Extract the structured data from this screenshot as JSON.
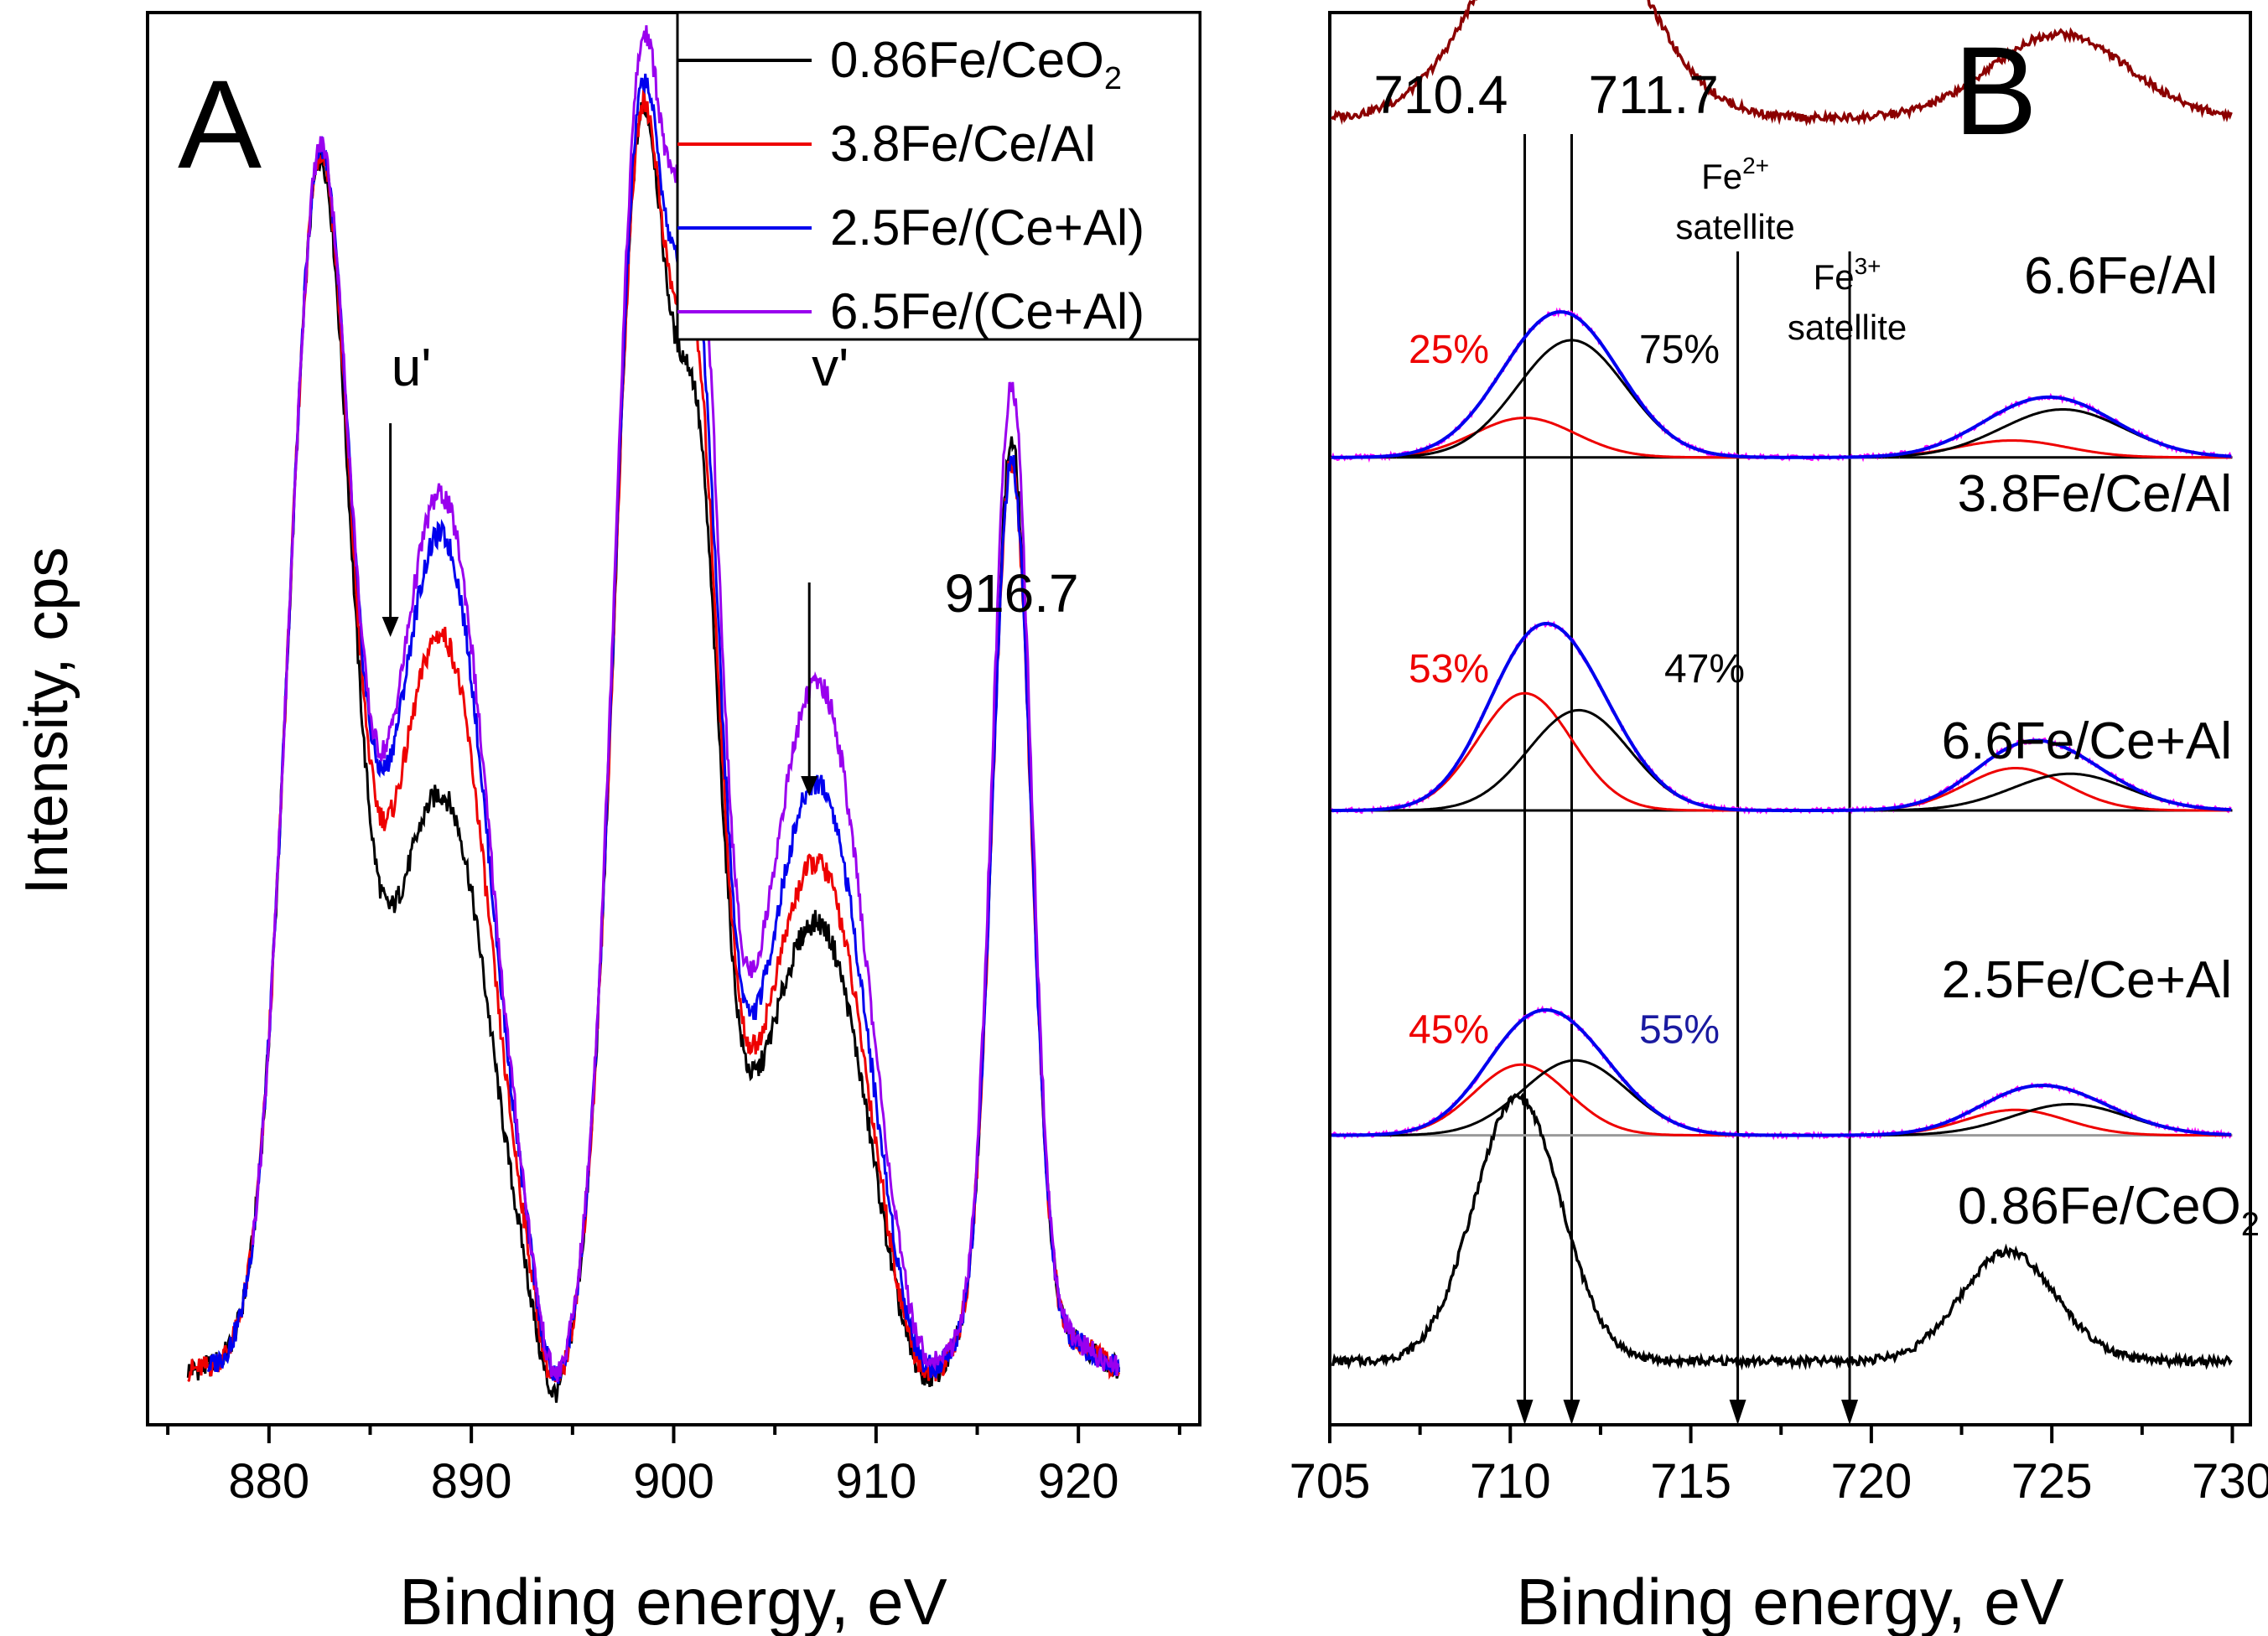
{
  "figure_caption": "",
  "chart_data": [
    {
      "type": "line",
      "panel_label": "A",
      "xlabel": "Binding energy, eV",
      "ylabel": "Intensity, cps",
      "xlim": [
        874,
        926
      ],
      "xticks": [
        "880",
        "890",
        "900",
        "910",
        "920"
      ],
      "yticks_shown": false,
      "ylim": [
        0,
        1.0
      ],
      "legend_position": "top-right",
      "legend": [
        {
          "text": "0.86Fe/CeO",
          "sub": "2",
          "color": "#000000"
        },
        {
          "text": "3.8Fe/Ce/Al",
          "sub": "",
          "color": "#ee0000"
        },
        {
          "text": "2.5Fe/(Ce+Al)",
          "sub": "",
          "color": "#0000ee"
        },
        {
          "text": "6.5Fe/(Ce+Al)",
          "sub": "",
          "color": "#9900ee"
        }
      ],
      "series": [
        {
          "name": "0.86Fe/CeO2",
          "color": "#000000",
          "x_range": [
            876,
            922
          ],
          "peaks": [
            {
              "center": 882.5,
              "height": 0.53,
              "width": 1.5
            },
            {
              "center": 888.5,
              "height": 0.22,
              "width": 2.4
            },
            {
              "center": 898.4,
              "height": 0.55,
              "width": 1.3
            },
            {
              "center": 901.2,
              "height": 0.35,
              "width": 1.1
            },
            {
              "center": 907.2,
              "height": 0.16,
              "width": 2.4
            },
            {
              "center": 916.7,
              "height": 0.45,
              "width": 0.95
            }
          ]
        },
        {
          "name": "3.8Fe/Ce/Al",
          "color": "#ee0000",
          "x_range": [
            876,
            922
          ],
          "peaks": [
            {
              "center": 882.5,
              "height": 0.53,
              "width": 1.5
            },
            {
              "center": 888.5,
              "height": 0.3,
              "width": 2.4
            },
            {
              "center": 898.4,
              "height": 0.55,
              "width": 1.3
            },
            {
              "center": 901.2,
              "height": 0.38,
              "width": 1.1
            },
            {
              "center": 907.2,
              "height": 0.19,
              "width": 2.4
            },
            {
              "center": 916.7,
              "height": 0.44,
              "width": 0.95
            }
          ]
        },
        {
          "name": "2.5Fe/(Ce+Al)",
          "color": "#0000ee",
          "x_range": [
            877,
            922
          ],
          "peaks": [
            {
              "center": 882.5,
              "height": 0.53,
              "width": 1.5
            },
            {
              "center": 888.5,
              "height": 0.35,
              "width": 2.4
            },
            {
              "center": 898.4,
              "height": 0.56,
              "width": 1.3
            },
            {
              "center": 901.2,
              "height": 0.41,
              "width": 1.1
            },
            {
              "center": 907.2,
              "height": 0.23,
              "width": 2.4
            },
            {
              "center": 916.7,
              "height": 0.44,
              "width": 0.95
            }
          ]
        },
        {
          "name": "6.5Fe/(Ce+Al)",
          "color": "#9900ee",
          "x_range": [
            879.2,
            922
          ],
          "peaks": [
            {
              "center": 882.5,
              "height": 0.53,
              "width": 1.5
            },
            {
              "center": 888.5,
              "height": 0.37,
              "width": 2.4
            },
            {
              "center": 898.4,
              "height": 0.58,
              "width": 1.3
            },
            {
              "center": 901.2,
              "height": 0.46,
              "width": 1.1
            },
            {
              "center": 907.2,
              "height": 0.28,
              "width": 2.4
            },
            {
              "center": 916.7,
              "height": 0.48,
              "width": 0.95
            }
          ]
        }
      ],
      "annotations": [
        {
          "text": "u'",
          "x": 886,
          "arrow": true
        },
        {
          "text": "v'",
          "x": 906.7,
          "arrow": true
        },
        {
          "text": "916.7",
          "x": 916.7,
          "arrow": false
        }
      ]
    },
    {
      "type": "line",
      "panel_label": "B",
      "xlabel": "Binding energy, eV",
      "xlim": [
        705,
        730.5
      ],
      "xticks": [
        "705",
        "710",
        "715",
        "720",
        "725",
        "730"
      ],
      "yticks_shown": false,
      "vertical_markers": [
        {
          "x": 710.4,
          "label": "710.4"
        },
        {
          "x": 711.7,
          "label": "711.7"
        },
        {
          "x": 716.3,
          "label": "Fe",
          "sup": "2+",
          "label2": "satellite"
        },
        {
          "x": 719.4,
          "label": "Fe",
          "sup": "3+",
          "label2": "satellite"
        }
      ],
      "spectra": [
        {
          "name": "6.6Fe/Al",
          "sub": "",
          "color": "#8b0000",
          "baseline": 0.075,
          "components": [],
          "peaks": [
            {
              "center": 711.4,
              "height": 0.175,
              "width": 2.0
            },
            {
              "center": 725.2,
              "height": 0.06,
              "width": 1.9
            }
          ]
        },
        {
          "name": "3.8Fe/Ce/Al",
          "sub": "",
          "color": "#000000",
          "baseline": 0.315,
          "components": [
            {
              "label": "25%",
              "label_color": "#ee0000",
              "color": "#ee0000",
              "peaks": [
                {
                  "center": 710.4,
                  "height": 0.028,
                  "width": 1.4
                },
                {
                  "center": 723.9,
                  "height": 0.012,
                  "width": 1.5
                }
              ]
            },
            {
              "label": "75%",
              "label_color": "#000000",
              "color": "#000000",
              "peaks": [
                {
                  "center": 711.7,
                  "height": 0.083,
                  "width": 1.5
                },
                {
                  "center": 725.3,
                  "height": 0.034,
                  "width": 1.7
                }
              ]
            }
          ]
        },
        {
          "name": "6.6Fe/Ce+Al",
          "sub": "",
          "color": "#000000",
          "baseline": 0.565,
          "components": [
            {
              "label": "53%",
              "label_color": "#ee0000",
              "color": "#ee0000",
              "peaks": [
                {
                  "center": 710.4,
                  "height": 0.083,
                  "width": 1.3
                },
                {
                  "center": 724.0,
                  "height": 0.03,
                  "width": 1.4
                }
              ]
            },
            {
              "label": "47%",
              "label_color": "#000000",
              "color": "#000000",
              "peaks": [
                {
                  "center": 711.9,
                  "height": 0.071,
                  "width": 1.4
                },
                {
                  "center": 725.5,
                  "height": 0.026,
                  "width": 1.6
                }
              ]
            }
          ]
        },
        {
          "name": "2.5Fe/Ce+Al",
          "sub": "",
          "color": "#000000",
          "baseline": 0.795,
          "components": [
            {
              "label": "45%",
              "label_color": "#ee0000",
              "color": "#ee0000",
              "peaks": [
                {
                  "center": 710.3,
                  "height": 0.05,
                  "width": 1.3
                },
                {
                  "center": 724.0,
                  "height": 0.018,
                  "width": 1.4
                }
              ]
            },
            {
              "label": "55%",
              "label_color": "#1a1aa0",
              "color": "#000000",
              "peaks": [
                {
                  "center": 711.8,
                  "height": 0.053,
                  "width": 1.45
                },
                {
                  "center": 725.5,
                  "height": 0.022,
                  "width": 1.6
                }
              ]
            }
          ]
        },
        {
          "name": "0.86Fe/CeO",
          "sub": "2",
          "color": "#000000",
          "baseline": 0.955,
          "components": [],
          "peaks": [
            {
              "center": 710.2,
              "height": 0.187,
              "width": 1.2
            },
            {
              "center": 723.8,
              "height": 0.078,
              "width": 1.3
            }
          ]
        }
      ]
    }
  ]
}
